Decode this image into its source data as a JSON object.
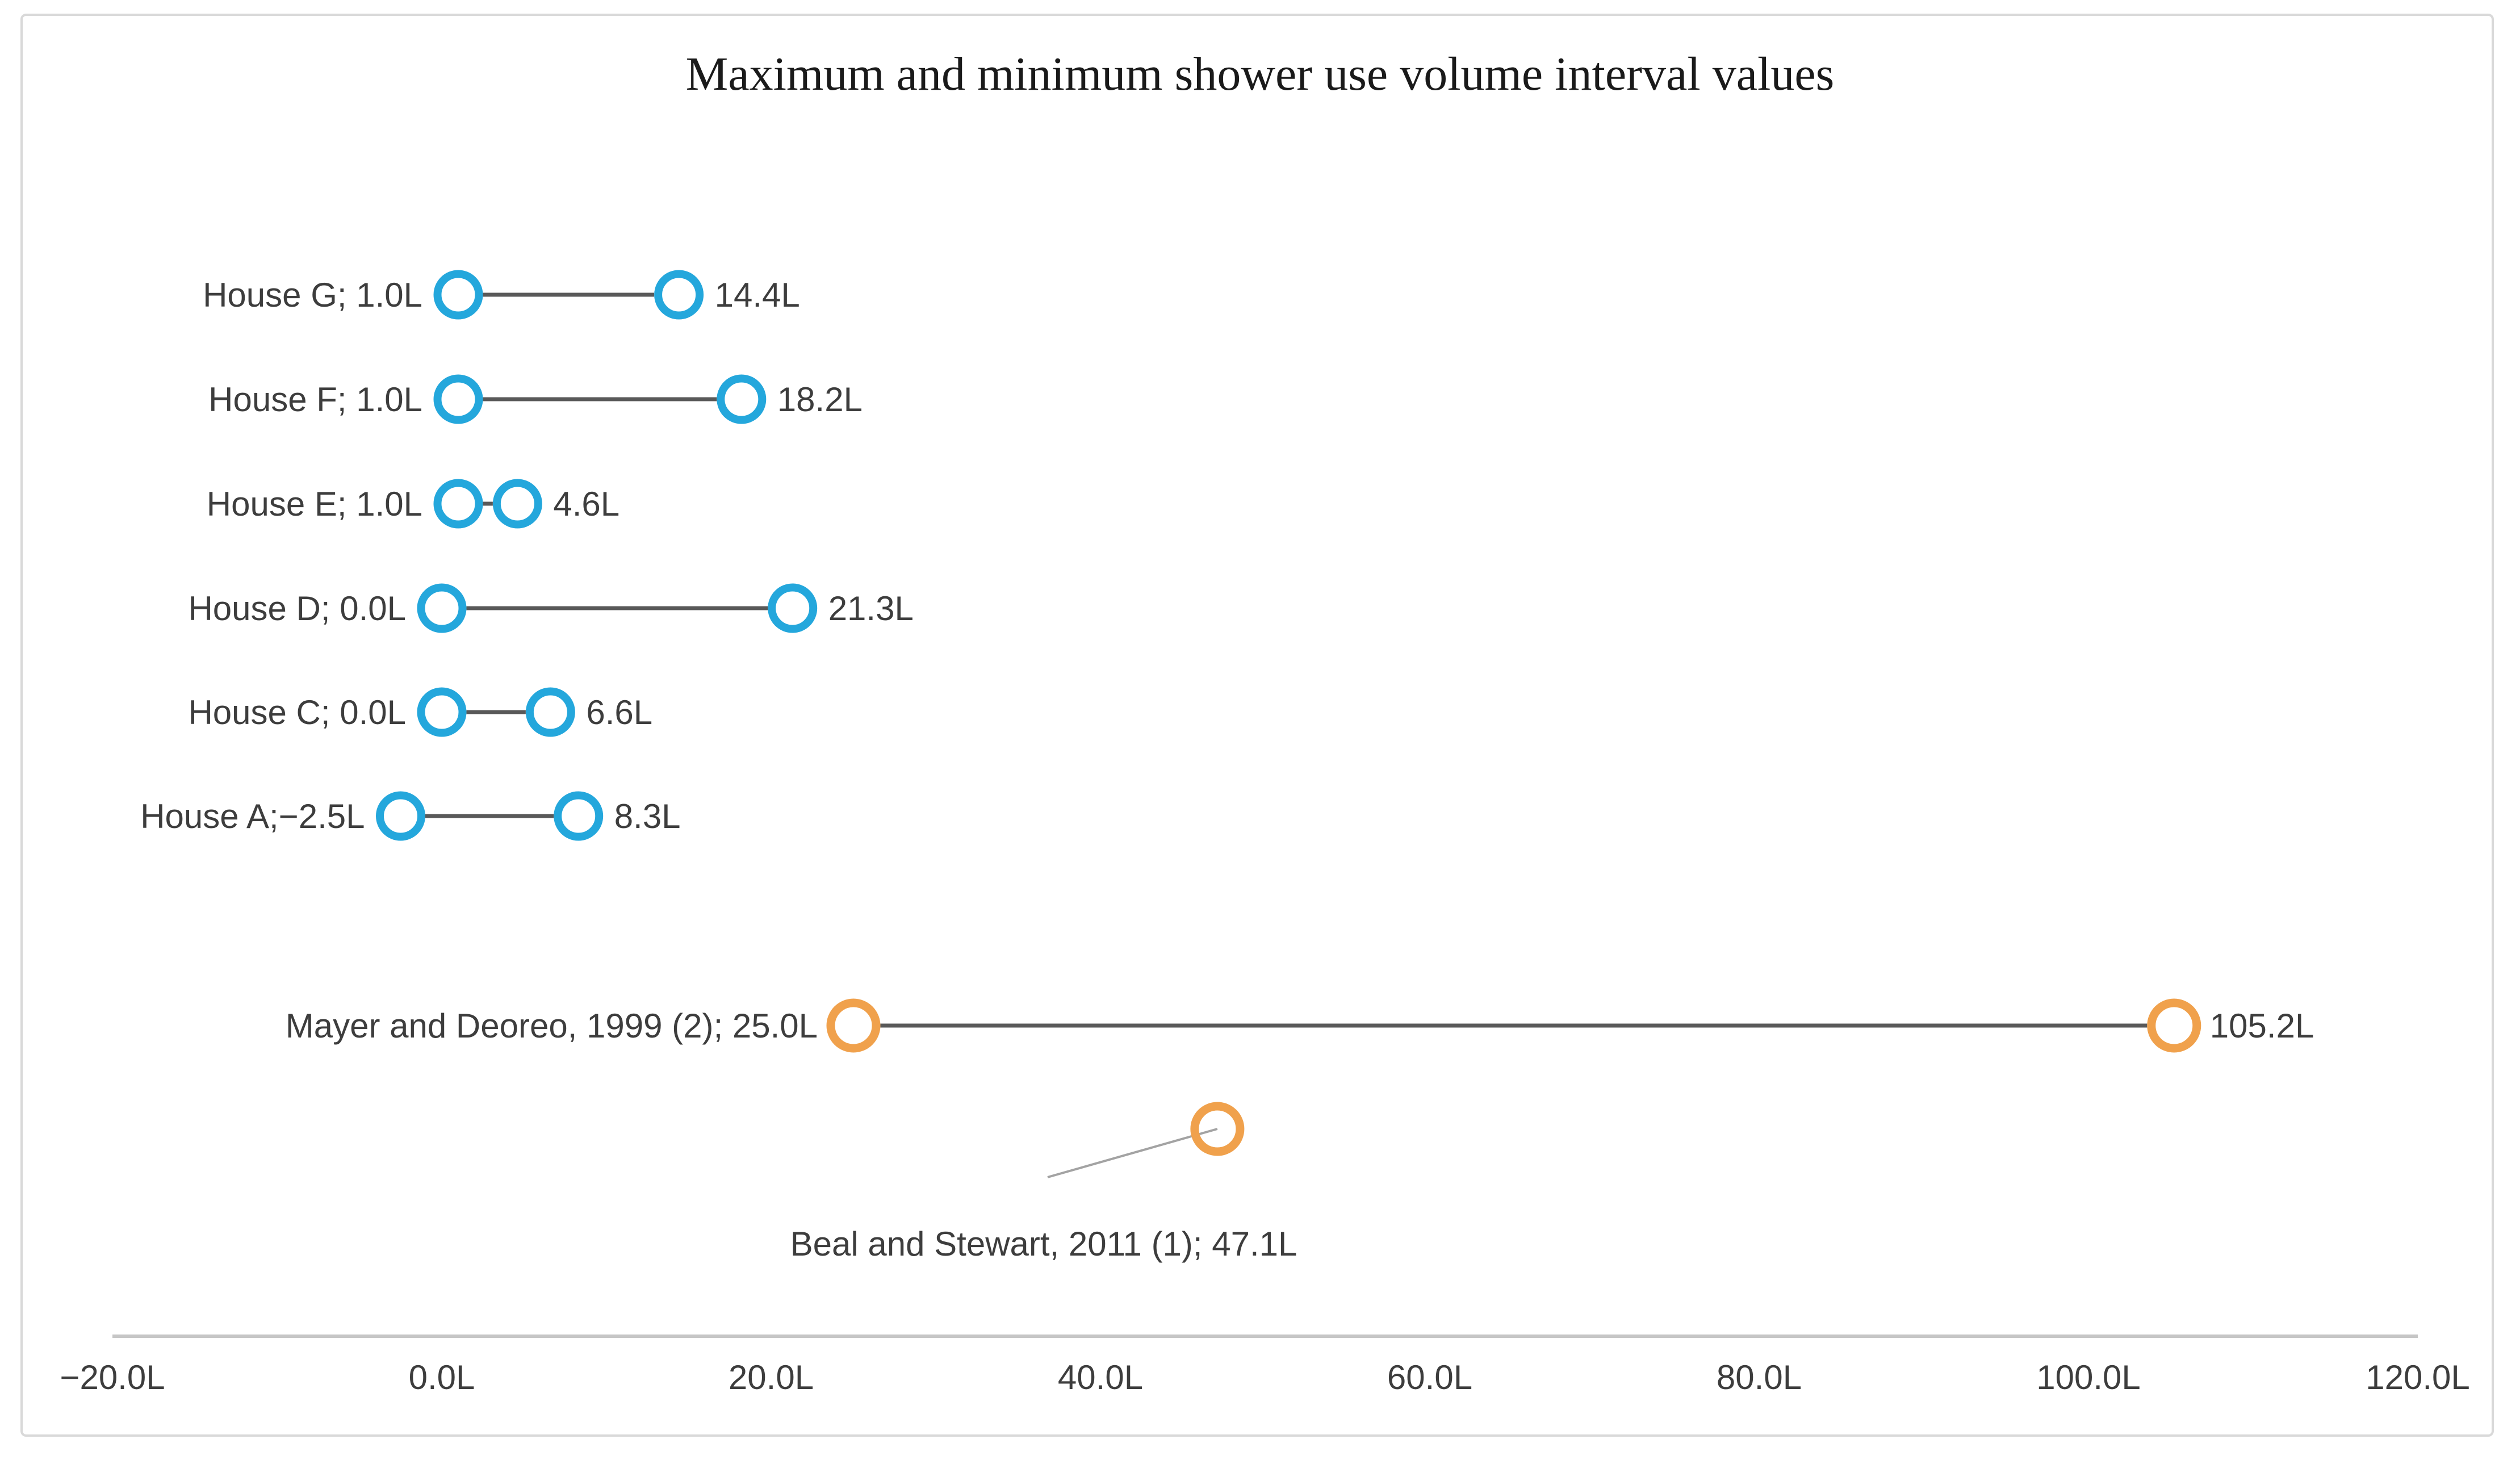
{
  "title": "Maximum and minimum shower use volume interval values",
  "chart_data": {
    "type": "dumbbell",
    "title": "Maximum and minimum shower use volume interval values",
    "unit": "L",
    "legend": "none",
    "grid": false,
    "x_axis": {
      "range": [
        -20,
        120
      ],
      "tick_values": [
        -20,
        0,
        20,
        40,
        60,
        80,
        100,
        120
      ],
      "tick_labels": [
        "−20.0L",
        "0.0L",
        "20.0L",
        "40.0L",
        "60.0L",
        "80.0L",
        "100.0L",
        "120.0L"
      ]
    },
    "series": [
      {
        "name": "houses",
        "marker_color": "#24a7dc",
        "items": [
          {
            "label": "House G; 1.0L",
            "min": 1.0,
            "max": 14.4,
            "max_label": "14.4L"
          },
          {
            "label": "House F; 1.0L",
            "min": 1.0,
            "max": 18.2,
            "max_label": "18.2L"
          },
          {
            "label": "House E; 1.0L",
            "min": 1.0,
            "max": 4.6,
            "max_label": "4.6L"
          },
          {
            "label": "House D; 0.0L",
            "min": 0.0,
            "max": 21.3,
            "max_label": "21.3L"
          },
          {
            "label": "House C; 0.0L",
            "min": 0.0,
            "max": 6.6,
            "max_label": "6.6L"
          },
          {
            "label": "House A;−2.5L",
            "min": -2.5,
            "max": 8.3,
            "max_label": "8.3L"
          }
        ]
      },
      {
        "name": "studies",
        "marker_color": "#f0a14c",
        "items": [
          {
            "label": "Mayer and Deoreo, 1999 (2); 25.0L",
            "min": 25.0,
            "max": 105.2,
            "max_label": "105.2L"
          },
          {
            "label": "Beal and Stewart, 2011 (1); 47.1L",
            "point": 47.1,
            "callout": true
          }
        ]
      }
    ],
    "colors": {
      "connector": "#595959",
      "axis_line": "#c6c6c6",
      "leader_line": "#a3a3a3",
      "label_text": "#3d3d3d",
      "title_text": "#1a1a1a",
      "frame_border": "#d9d9d9",
      "background": "#ffffff"
    }
  }
}
